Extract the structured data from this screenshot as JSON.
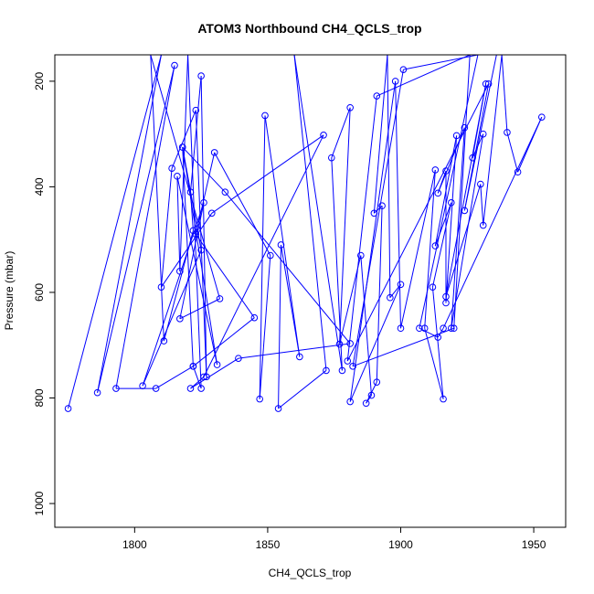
{
  "chart_data": {
    "type": "line",
    "title": "ATOM3 Northbound CH4_QCLS_trop",
    "xlabel": "CH4_QCLS_trop",
    "ylabel": "Pressure (mbar)",
    "xlim": [
      1770,
      1962
    ],
    "ylim": [
      1045,
      150
    ],
    "y_reversed": true,
    "x_ticks": [
      1800,
      1850,
      1900,
      1950
    ],
    "y_ticks": [
      200,
      400,
      600,
      800,
      1000
    ],
    "grid": false,
    "legend": "none",
    "color": "#0000ff",
    "series": [
      {
        "points": [
          [
            1775,
            820
          ],
          [
            1810,
            150
          ],
          [
            1786,
            790
          ],
          [
            1815,
            170
          ],
          [
            1793,
            782
          ],
          [
            1808,
            782
          ],
          [
            1822,
            740
          ],
          [
            1818,
            325
          ],
          [
            1825,
            520
          ],
          [
            1803,
            777
          ],
          [
            1826,
            430
          ],
          [
            1817,
            650
          ],
          [
            1832,
            612
          ],
          [
            1806,
            150
          ],
          [
            1811,
            692
          ],
          [
            1822,
            483
          ],
          [
            1821,
            410
          ],
          [
            1825,
            190
          ],
          [
            1827,
            760
          ],
          [
            1823,
            255
          ],
          [
            1814,
            365
          ],
          [
            1810,
            590
          ],
          [
            1829,
            450
          ],
          [
            1871,
            302
          ],
          [
            1826,
            760
          ],
          [
            1821,
            782
          ],
          [
            1839,
            725
          ],
          [
            1881,
            697
          ],
          [
            1834,
            410
          ],
          [
            1818,
            325
          ],
          [
            1831,
            737
          ],
          [
            1816,
            380
          ],
          [
            1817,
            560
          ],
          [
            1820,
            150
          ],
          [
            1825,
            782
          ],
          [
            1822,
            740
          ],
          [
            1845,
            648
          ],
          [
            1823,
            490
          ],
          [
            1830,
            335
          ],
          [
            1851,
            530
          ],
          [
            1847,
            802
          ],
          [
            1849,
            265
          ],
          [
            1862,
            722
          ],
          [
            1855,
            510
          ],
          [
            1854,
            820
          ],
          [
            1872,
            748
          ],
          [
            1860,
            150
          ],
          [
            1878,
            748
          ],
          [
            1874,
            345
          ],
          [
            1881,
            250
          ],
          [
            1877,
            698
          ],
          [
            1885,
            530
          ],
          [
            1889,
            795
          ],
          [
            1887,
            810
          ],
          [
            1891,
            770
          ],
          [
            1893,
            436
          ],
          [
            1890,
            450
          ],
          [
            1895,
            150
          ],
          [
            1896,
            610
          ],
          [
            1900,
            585
          ],
          [
            1881,
            807
          ],
          [
            1898,
            200
          ],
          [
            1900,
            668
          ],
          [
            1913,
            368
          ],
          [
            1909,
            668
          ],
          [
            1916,
            802
          ],
          [
            1912,
            590
          ],
          [
            1919,
            430
          ],
          [
            1913,
            512
          ],
          [
            1921,
            303
          ],
          [
            1917,
            620
          ],
          [
            1917,
            370
          ],
          [
            1914,
            412
          ],
          [
            1924,
            288
          ],
          [
            1919,
            668
          ],
          [
            1931,
            300
          ],
          [
            1927,
            345
          ],
          [
            1932,
            205
          ],
          [
            1917,
            608
          ],
          [
            1930,
            395
          ],
          [
            1931,
            473
          ],
          [
            1938,
            150
          ],
          [
            1940,
            297
          ],
          [
            1944,
            372
          ],
          [
            1953,
            268
          ],
          [
            1916,
            668
          ],
          [
            1914,
            685
          ],
          [
            1907,
            668
          ],
          [
            1929,
            150
          ],
          [
            1901,
            178
          ],
          [
            1882,
            740
          ],
          [
            1920,
            668
          ],
          [
            1926,
            150
          ],
          [
            1891,
            228
          ],
          [
            1880,
            730
          ],
          [
            1933,
            205
          ],
          [
            1924,
            445
          ],
          [
            1936,
            150
          ]
        ]
      }
    ]
  }
}
